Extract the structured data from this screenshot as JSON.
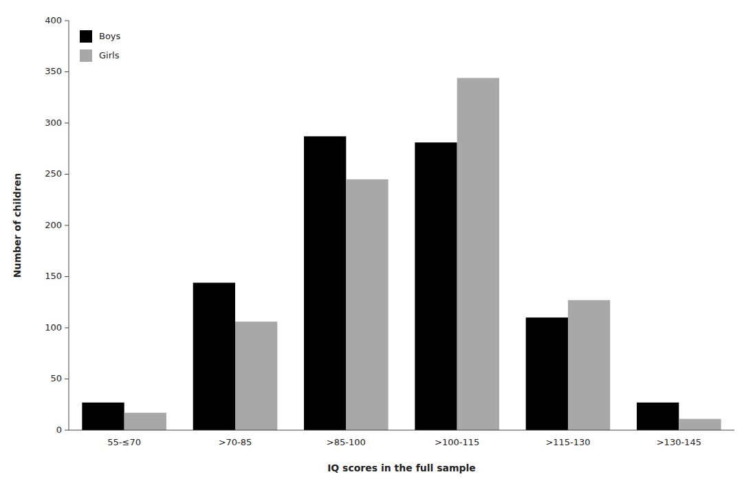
{
  "chart_data": {
    "type": "bar",
    "xlabel": "IQ scores in the full sample",
    "ylabel": "Number of children",
    "categories": [
      "55-≤70",
      ">70-85",
      ">85-100",
      ">100-115",
      ">115-130",
      ">130-145"
    ],
    "series": [
      {
        "name": "Boys",
        "color": "#000000",
        "values": [
          27,
          144,
          287,
          281,
          110,
          27
        ]
      },
      {
        "name": "Girls",
        "color": "#a8a8a8",
        "values": [
          17,
          106,
          245,
          344,
          127,
          11
        ]
      }
    ],
    "ylim": [
      0,
      400
    ],
    "yticks": [
      0,
      50,
      100,
      150,
      200,
      250,
      300,
      350,
      400
    ],
    "legend": "upper left"
  }
}
